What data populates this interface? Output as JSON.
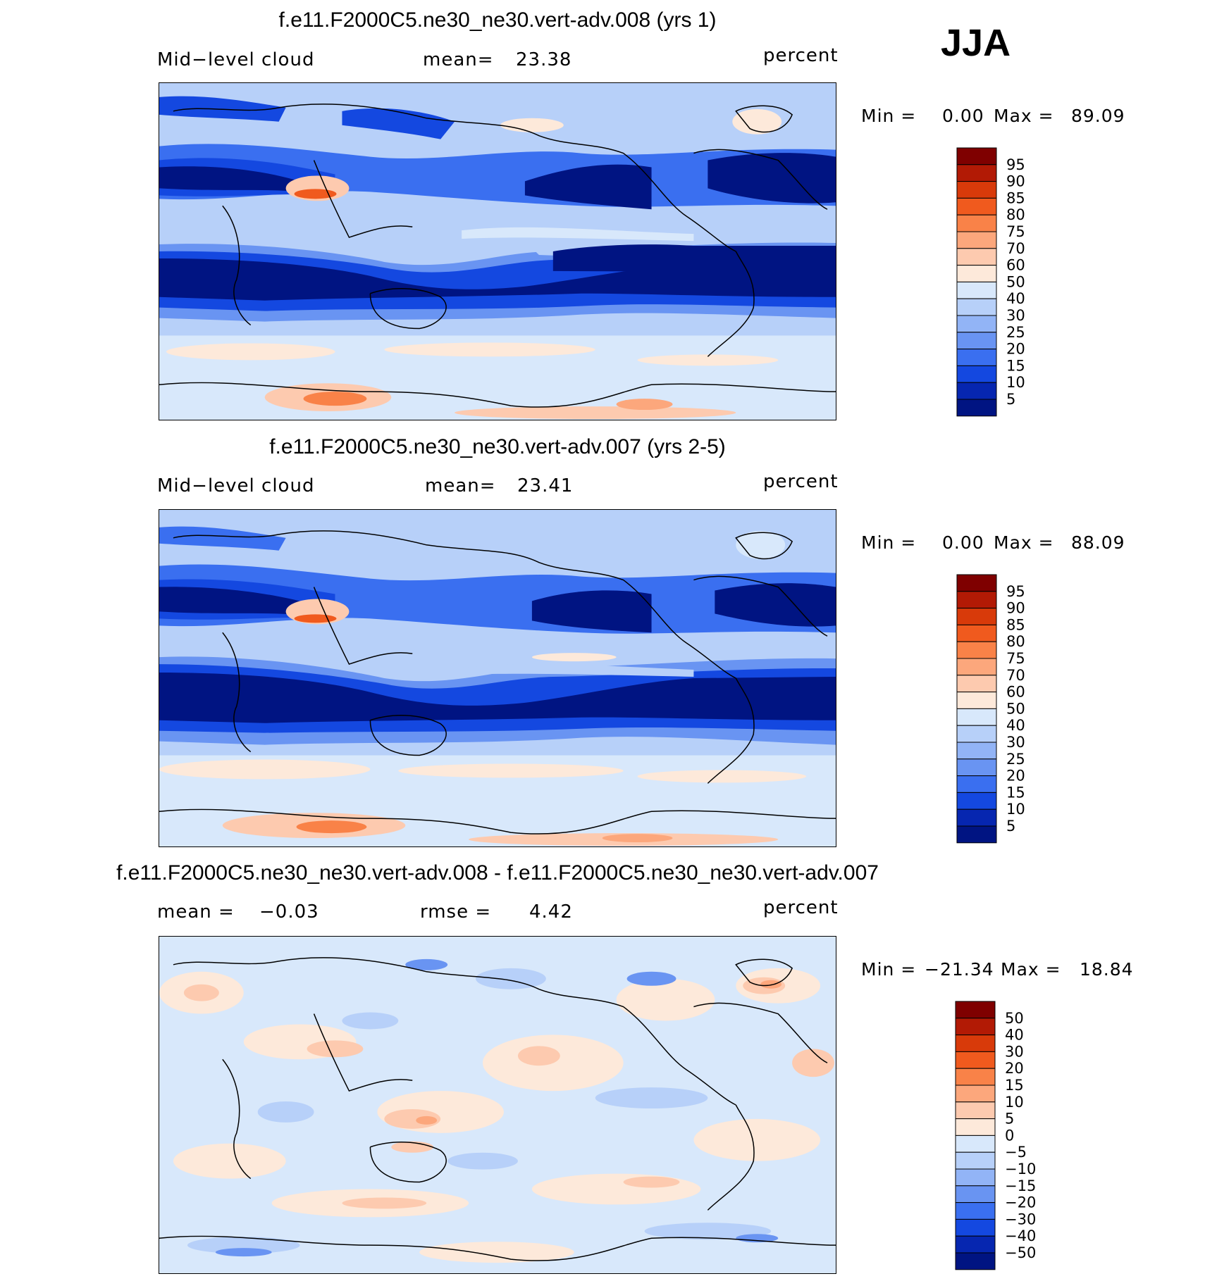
{
  "season": "JJA",
  "panels": [
    {
      "title": "f.e11.F2000C5.ne30_ne30.vert-adv.008 (yrs 1)",
      "left_label": "Mid−level cloud",
      "stat_label": "mean=",
      "stat_value": "23.38",
      "units": "percent",
      "min_label": "Min =",
      "min_value": "0.00",
      "max_label": "Max =",
      "max_value": "89.09",
      "colorbar": [
        "95",
        "90",
        "85",
        "80",
        "75",
        "70",
        "60",
        "50",
        "40",
        "30",
        "25",
        "20",
        "15",
        "10",
        "5"
      ]
    },
    {
      "title": "f.e11.F2000C5.ne30_ne30.vert-adv.007 (yrs 2-5)",
      "left_label": "Mid−level cloud",
      "stat_label": "mean=",
      "stat_value": "23.41",
      "units": "percent",
      "min_label": "Min =",
      "min_value": "0.00",
      "max_label": "Max =",
      "max_value": "88.09",
      "colorbar": [
        "95",
        "90",
        "85",
        "80",
        "75",
        "70",
        "60",
        "50",
        "40",
        "30",
        "25",
        "20",
        "15",
        "10",
        "5"
      ]
    },
    {
      "title": "f.e11.F2000C5.ne30_ne30.vert-adv.008 - f.e11.F2000C5.ne30_ne30.vert-adv.007",
      "left_label": "mean =",
      "left_value": "−0.03",
      "stat_label": "rmse =",
      "stat_value": "4.42",
      "units": "percent",
      "min_label": "Min =",
      "min_value": "−21.34",
      "max_label": "Max =",
      "max_value": "18.84",
      "colorbar": [
        "50",
        "40",
        "30",
        "20",
        "15",
        "10",
        "5",
        "0",
        "−5",
        "−10",
        "−15",
        "−20",
        "−30",
        "−40",
        "−50"
      ]
    }
  ],
  "colors": {
    "abs_scale": [
      "#7f0000",
      "#b21a05",
      "#d83a0a",
      "#f05a1e",
      "#f98248",
      "#fca77c",
      "#fdcaaf",
      "#fde9da",
      "#d8e8fb",
      "#b7d0f9",
      "#92b4f6",
      "#6994f2",
      "#3a6ff0",
      "#1448e0",
      "#0626b0",
      "#001482"
    ],
    "diff_scale": [
      "#7f0000",
      "#b21a05",
      "#d83a0a",
      "#f05a1e",
      "#f98248",
      "#fca77c",
      "#fdcaaf",
      "#fde9da",
      "#d8e8fb",
      "#b7d0f9",
      "#92b4f6",
      "#6994f2",
      "#3a6ff0",
      "#1448e0",
      "#0626b0",
      "#001482"
    ]
  },
  "chart_data": [
    {
      "type": "heatmap",
      "title": "f.e11.F2000C5.ne30_ne30.vert-adv.008 (yrs 1)",
      "field": "Mid−level cloud",
      "units": "percent",
      "mean": 23.38,
      "min": 0.0,
      "max": 89.09,
      "levels": [
        5,
        10,
        15,
        20,
        25,
        30,
        40,
        50,
        60,
        70,
        75,
        80,
        85,
        90,
        95
      ]
    },
    {
      "type": "heatmap",
      "title": "f.e11.F2000C5.ne30_ne30.vert-adv.007 (yrs 2-5)",
      "field": "Mid−level cloud",
      "units": "percent",
      "mean": 23.41,
      "min": 0.0,
      "max": 88.09,
      "levels": [
        5,
        10,
        15,
        20,
        25,
        30,
        40,
        50,
        60,
        70,
        75,
        80,
        85,
        90,
        95
      ]
    },
    {
      "type": "heatmap",
      "title": "f.e11.F2000C5.ne30_ne30.vert-adv.008 - f.e11.F2000C5.ne30_ne30.vert-adv.007",
      "units": "percent",
      "mean": -0.03,
      "rmse": 4.42,
      "min": -21.34,
      "max": 18.84,
      "levels": [
        -50,
        -40,
        -30,
        -20,
        -15,
        -10,
        -5,
        0,
        5,
        10,
        15,
        20,
        30,
        40,
        50
      ]
    }
  ]
}
